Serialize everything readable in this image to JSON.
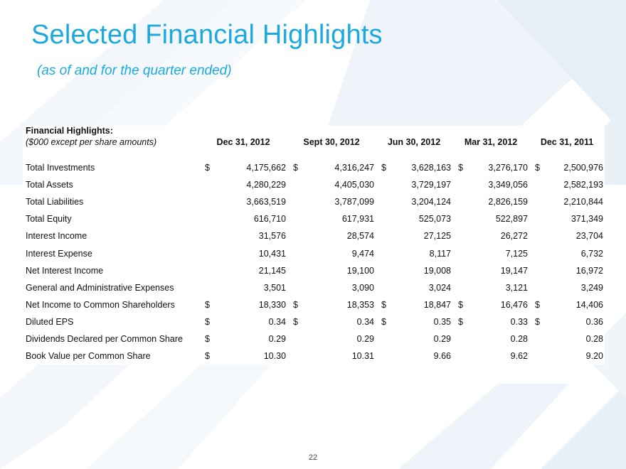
{
  "slide": {
    "title": "Selected Financial Highlights",
    "subtitle": "(as of and for the quarter ended)",
    "page_number": "22",
    "accent_color": "#1ba9df"
  },
  "table": {
    "section_title": "Financial Highlights:",
    "units_note": "($000 except per share amounts)",
    "columns": [
      "Dec 31, 2012",
      "Sept 30, 2012",
      "Jun 30, 2012",
      "Mar 31, 2012",
      "Dec 31, 2011"
    ],
    "rows": [
      {
        "label": "Total Investments",
        "cur": [
          "$",
          "$",
          "$",
          "$",
          "$"
        ],
        "values": [
          "4,175,662",
          "4,316,247",
          "3,628,163",
          "3,276,170",
          "2,500,976"
        ]
      },
      {
        "label": "Total Assets",
        "cur": [
          "",
          "",
          "",
          "",
          ""
        ],
        "values": [
          "4,280,229",
          "4,405,030",
          "3,729,197",
          "3,349,056",
          "2,582,193"
        ]
      },
      {
        "label": "Total Liabilities",
        "cur": [
          "",
          "",
          "",
          "",
          ""
        ],
        "values": [
          "3,663,519",
          "3,787,099",
          "3,204,124",
          "2,826,159",
          "2,210,844"
        ]
      },
      {
        "label": "Total Equity",
        "cur": [
          "",
          "",
          "",
          "",
          ""
        ],
        "values": [
          "616,710",
          "617,931",
          "525,073",
          "522,897",
          "371,349"
        ]
      },
      {
        "label": "Interest Income",
        "cur": [
          "",
          "",
          "",
          "",
          ""
        ],
        "values": [
          "31,576",
          "28,574",
          "27,125",
          "26,272",
          "23,704"
        ]
      },
      {
        "label": "Interest Expense",
        "cur": [
          "",
          "",
          "",
          "",
          ""
        ],
        "values": [
          "10,431",
          "9,474",
          "8,117",
          "7,125",
          "6,732"
        ]
      },
      {
        "label": "Net Interest Income",
        "cur": [
          "",
          "",
          "",
          "",
          ""
        ],
        "values": [
          "21,145",
          "19,100",
          "19,008",
          "19,147",
          "16,972"
        ]
      },
      {
        "label": "General and Administrative Expenses",
        "cur": [
          "",
          "",
          "",
          "",
          ""
        ],
        "values": [
          "3,501",
          "3,090",
          "3,024",
          "3,121",
          "3,249"
        ]
      },
      {
        "label": "Net Income to Common Shareholders",
        "cur": [
          "$",
          "$",
          "$",
          "$",
          "$"
        ],
        "values": [
          "18,330",
          "18,353",
          "18,847",
          "16,476",
          "14,406"
        ]
      },
      {
        "label": "Diluted EPS",
        "cur": [
          "$",
          "$",
          "$",
          "$",
          "$"
        ],
        "values": [
          "0.34",
          "0.34",
          "0.35",
          "0.33",
          "0.36"
        ]
      },
      {
        "label": "Dividends Declared per Common Share",
        "cur": [
          "$",
          "",
          "",
          "",
          ""
        ],
        "values": [
          "0.29",
          "0.29",
          "0.29",
          "0.28",
          "0.28"
        ]
      },
      {
        "label": "Book Value per Common Share",
        "cur": [
          "$",
          "",
          "",
          "",
          ""
        ],
        "values": [
          "10.30",
          "10.31",
          "9.66",
          "9.62",
          "9.20"
        ]
      }
    ]
  }
}
